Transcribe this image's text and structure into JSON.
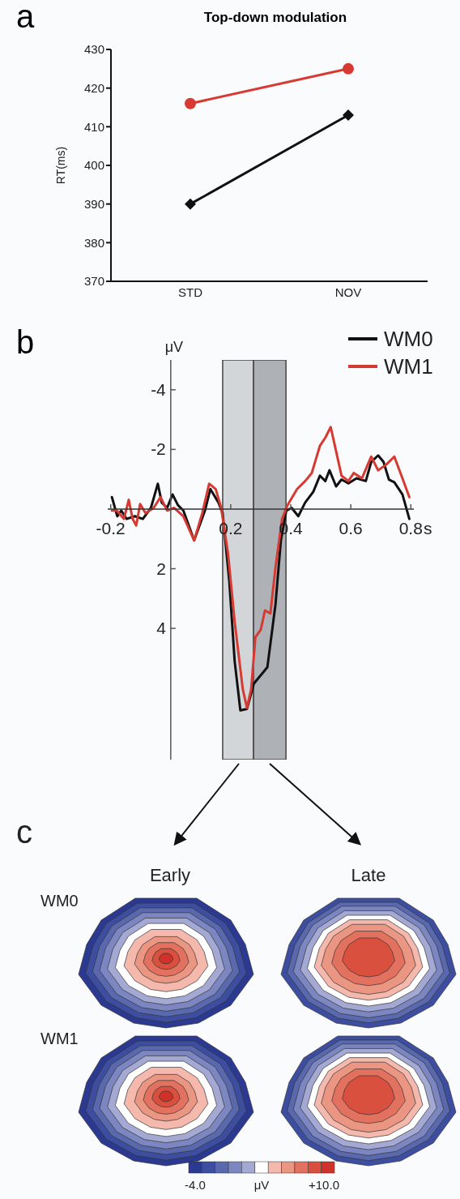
{
  "chart_data": [
    {
      "type": "line",
      "title": "Top-down modulation",
      "annotations": [
        "a"
      ],
      "categories": [
        "STD",
        "NOV"
      ],
      "ylabel": "RT(ms)",
      "ylim": [
        370,
        430
      ],
      "yticks": [
        370,
        380,
        390,
        400,
        410,
        420,
        430
      ],
      "series": [
        {
          "color": "#d63a32",
          "marker": "circle",
          "values": [
            416,
            425
          ]
        },
        {
          "color": "#111111",
          "marker": "diamond",
          "values": [
            390,
            413
          ]
        }
      ]
    },
    {
      "type": "line",
      "annotations": [
        "b"
      ],
      "xlabel": "s",
      "ylabel": "μV",
      "xlim": [
        -0.21,
        0.81
      ],
      "xticks": [
        -0.2,
        0.2,
        0.4,
        0.6,
        0.8
      ],
      "ylim": [
        8.4,
        -5
      ],
      "yticks": [
        -4,
        -2,
        2,
        4
      ],
      "legend": "top right",
      "bands": [
        {
          "axis": "x",
          "from": 0.173,
          "to": 0.276,
          "color": "#d3d6d9"
        },
        {
          "axis": "x",
          "from": 0.276,
          "to": 0.384,
          "color": "#aeb2b6"
        }
      ],
      "series": [
        {
          "name": "WM0",
          "color": "#111111",
          "x": [
            -0.196,
            -0.178,
            -0.165,
            -0.147,
            -0.12,
            -0.093,
            -0.066,
            -0.043,
            -0.03,
            -0.012,
            0.006,
            0.024,
            0.042,
            0.078,
            0.114,
            0.132,
            0.159,
            0.173,
            0.195,
            0.213,
            0.232,
            0.254,
            0.277,
            0.322,
            0.349,
            0.367,
            0.385,
            0.403,
            0.425,
            0.448,
            0.475,
            0.497,
            0.515,
            0.529,
            0.551,
            0.569,
            0.592,
            0.619,
            0.65,
            0.668,
            0.691,
            0.709,
            0.727,
            0.745,
            0.772,
            0.795
          ],
          "values": [
            -0.4,
            0.24,
            0.05,
            0.33,
            0.24,
            0.33,
            -0.04,
            -0.85,
            -0.22,
            -0.04,
            -0.49,
            -0.13,
            0.05,
            1.05,
            0.05,
            -0.67,
            -0.22,
            0.14,
            2.4,
            5.1,
            6.75,
            6.7,
            5.85,
            5.3,
            3.2,
            1.05,
            0.05,
            -0.04,
            0.24,
            -0.22,
            -0.58,
            -1.12,
            -0.94,
            -1.3,
            -0.76,
            -0.99,
            -0.86,
            -1.03,
            -0.94,
            -1.58,
            -1.8,
            -1.58,
            -0.99,
            -0.9,
            -0.49,
            0.33
          ]
        },
        {
          "name": "WM1",
          "color": "#d63a32",
          "x": [
            -0.196,
            -0.18,
            -0.156,
            -0.14,
            -0.127,
            -0.115,
            -0.102,
            -0.084,
            -0.057,
            -0.034,
            -0.012,
            0.011,
            0.042,
            0.078,
            0.105,
            0.128,
            0.15,
            0.168,
            0.191,
            0.213,
            0.24,
            0.254,
            0.268,
            0.282,
            0.3,
            0.314,
            0.332,
            0.349,
            0.371,
            0.389,
            0.421,
            0.448,
            0.47,
            0.497,
            0.515,
            0.533,
            0.551,
            0.569,
            0.592,
            0.61,
            0.637,
            0.668,
            0.691,
            0.718,
            0.745,
            0.772,
            0.795
          ],
          "values": [
            0.05,
            0.05,
            0.33,
            -0.31,
            0.33,
            0.55,
            -0.17,
            0.14,
            -0.04,
            -0.4,
            0.05,
            -0.04,
            0.24,
            1.05,
            0.14,
            -0.85,
            -0.67,
            -0.04,
            1.5,
            3.77,
            6.03,
            6.67,
            6.03,
            4.3,
            4.04,
            3.4,
            3.5,
            1.96,
            0.33,
            -0.13,
            -0.67,
            -0.94,
            -1.21,
            -2.12,
            -2.39,
            -2.75,
            -1.94,
            -1.12,
            -0.94,
            -1.21,
            -1.03,
            -1.76,
            -1.3,
            -1.49,
            -1.76,
            -1.03,
            -0.4
          ]
        }
      ]
    },
    {
      "type": "other",
      "annotations": [
        "c",
        "Early",
        "Late",
        "WM0",
        "WM1",
        "-4.0",
        "μV",
        "+10.0"
      ]
    }
  ]
}
